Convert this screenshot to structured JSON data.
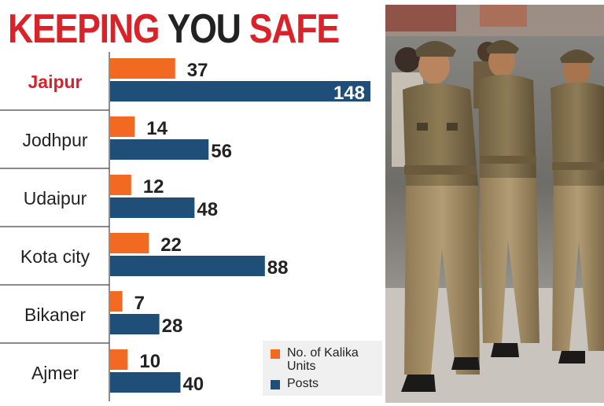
{
  "title": {
    "part1": "KEEPING ",
    "part2": "YOU ",
    "part3": "SAFE"
  },
  "colors": {
    "units": "#f26a21",
    "posts": "#1f4e79",
    "highlight": "#d9232a"
  },
  "legend": {
    "units_label": "No. of Kalika Units",
    "posts_label": "Posts"
  },
  "chart_data": {
    "type": "bar",
    "orientation": "horizontal",
    "title": "KEEPING YOU SAFE",
    "categories": [
      "Jaipur",
      "Jodhpur",
      "Udaipur",
      "Kota city",
      "Bikaner",
      "Ajmer"
    ],
    "highlight_category": "Jaipur",
    "series": [
      {
        "name": "No. of Kalika Units",
        "values": [
          37,
          14,
          12,
          22,
          7,
          10
        ],
        "color": "#f26a21"
      },
      {
        "name": "Posts",
        "values": [
          148,
          56,
          48,
          88,
          28,
          40
        ],
        "color": "#1f4e79"
      }
    ],
    "xlim": [
      0,
      148
    ],
    "legend_position": "bottom-right",
    "grid": false
  },
  "photo": {
    "icon": "police-women-patrol-photo"
  }
}
